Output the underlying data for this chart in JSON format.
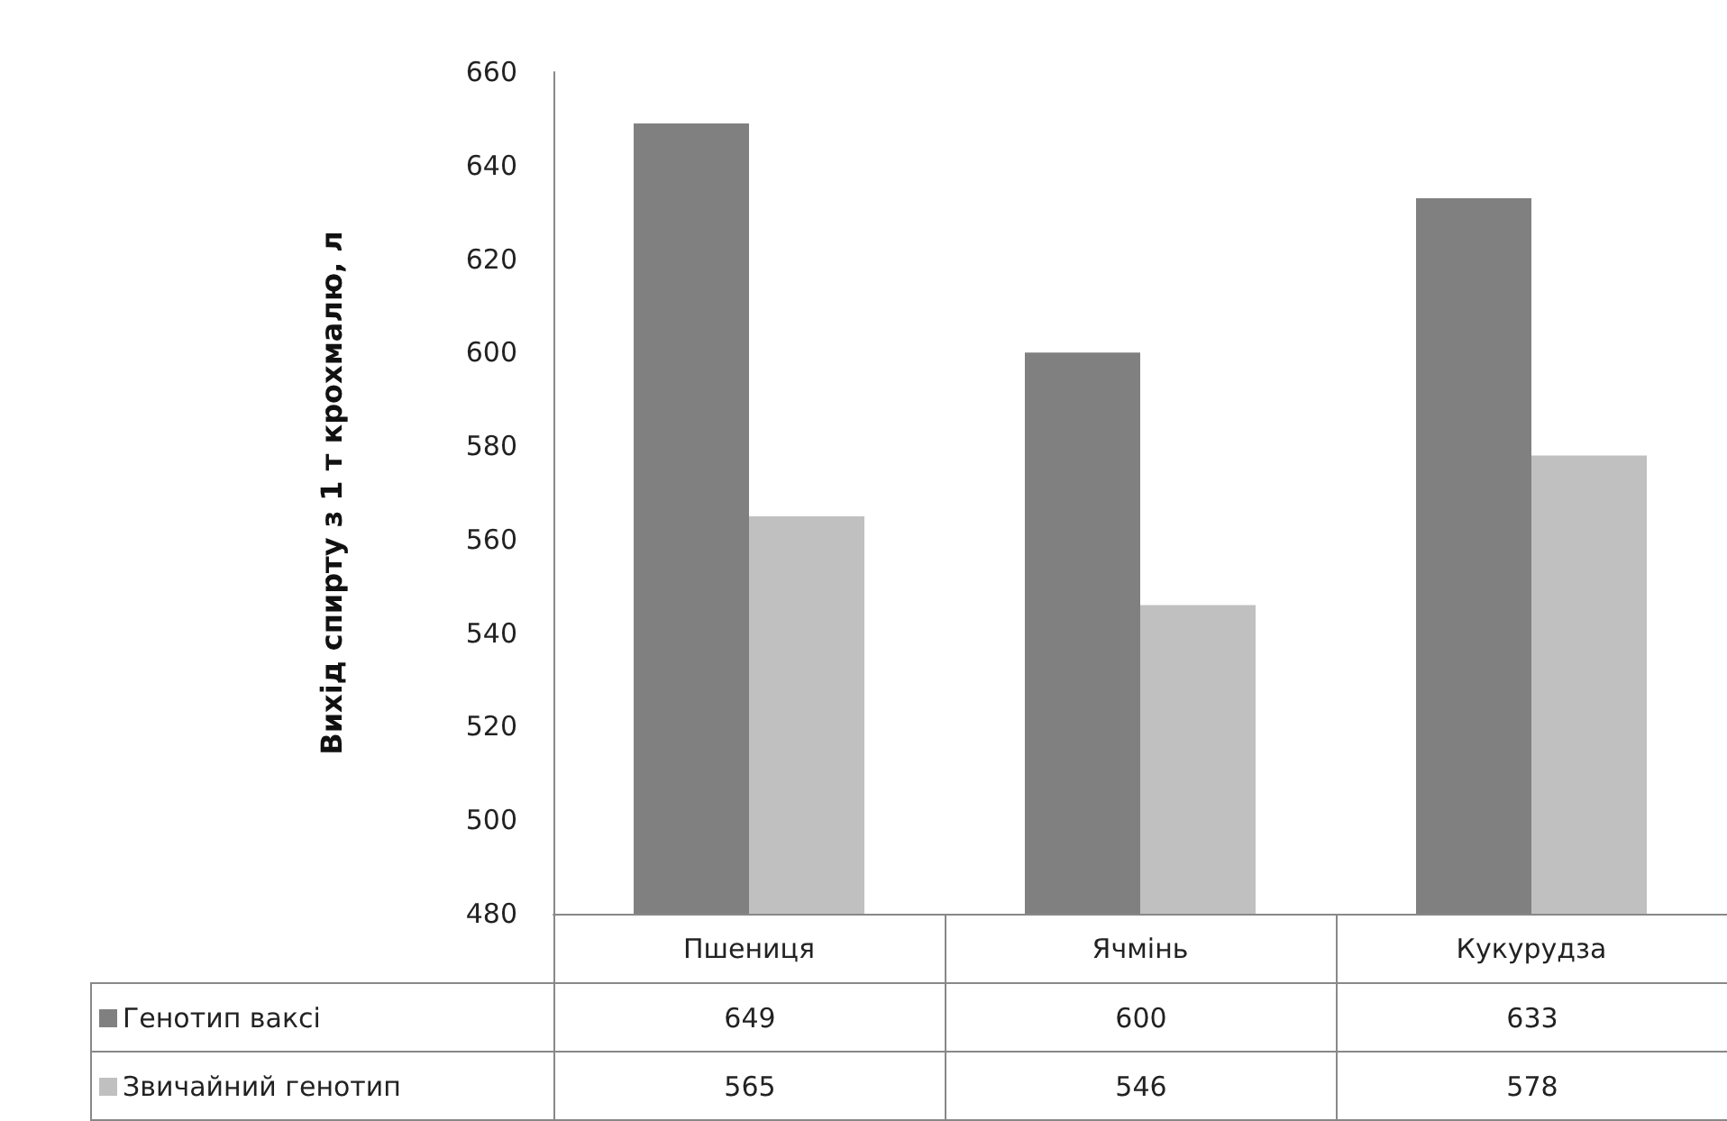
{
  "chart_data": {
    "type": "bar",
    "ylabel": "Вихід спирту з 1 т крохмалю, л",
    "categories": [
      "Пшениця",
      "Ячмінь",
      "Кукурудза"
    ],
    "series": [
      {
        "name": "Генотип ваксі",
        "color": "#808080",
        "values": [
          649,
          600,
          633
        ]
      },
      {
        "name": "Звичайний генотип",
        "color": "#c0c0c0",
        "values": [
          565,
          546,
          578
        ]
      }
    ],
    "ylim": [
      480,
      660
    ],
    "yticks": [
      480,
      500,
      520,
      540,
      560,
      580,
      600,
      620,
      640,
      660
    ],
    "grid": false,
    "legend": "bottom left",
    "data_labels": true
  }
}
